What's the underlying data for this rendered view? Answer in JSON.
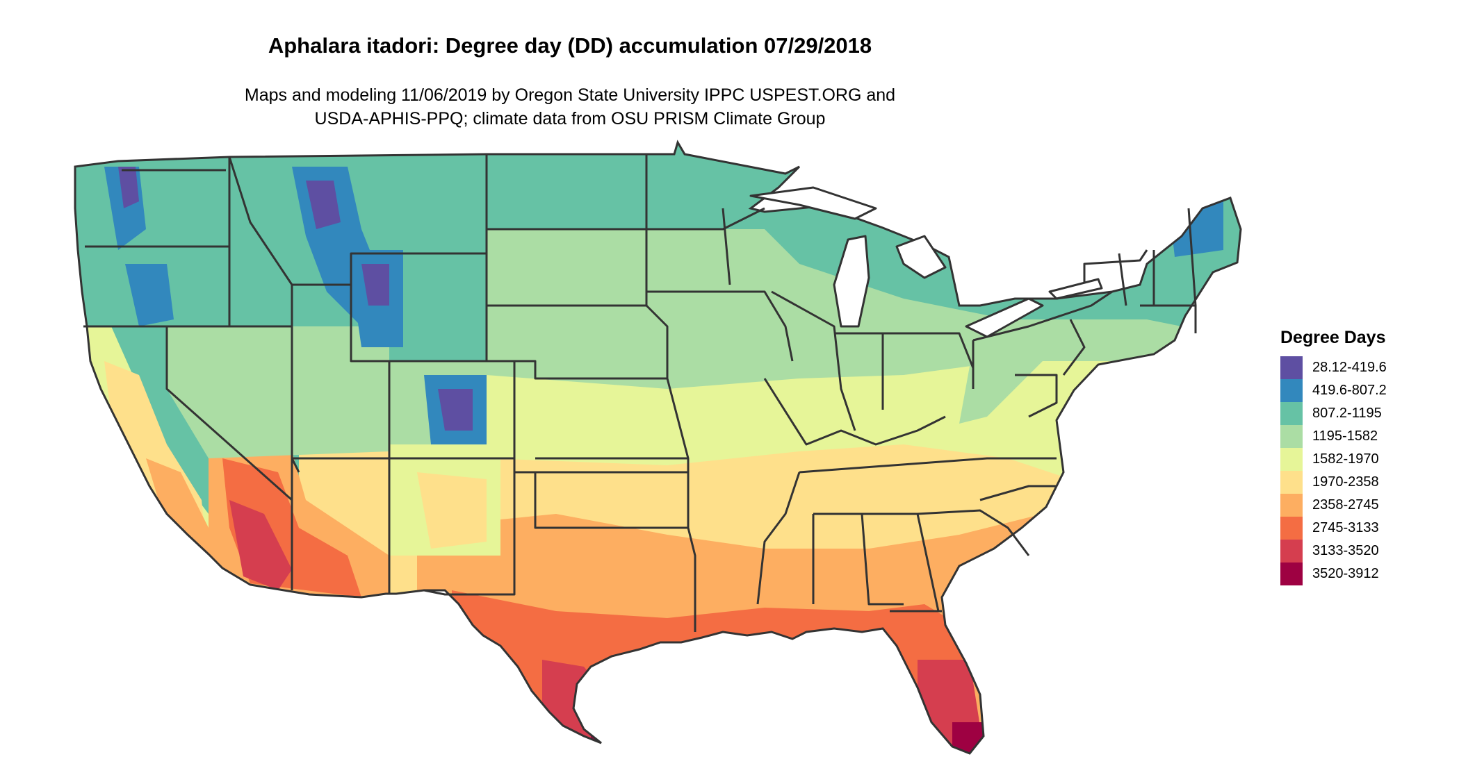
{
  "title": "Aphalara itadori: Degree day (DD) accumulation 07/29/2018",
  "subtitle_lines": [
    "Maps and modeling 11/06/2019 by Oregon State University IPPC USPEST.ORG and",
    "USDA-APHIS-PPQ; climate data from OSU PRISM Climate Group"
  ],
  "legend": {
    "title": "Degree Days",
    "items": [
      {
        "label": "28.12-419.6",
        "color": "#5e4fa2"
      },
      {
        "label": "419.6-807.2",
        "color": "#3288bd"
      },
      {
        "label": "807.2-1195",
        "color": "#66c2a5"
      },
      {
        "label": "1195-1582",
        "color": "#abdda4"
      },
      {
        "label": "1582-1970",
        "color": "#e6f598"
      },
      {
        "label": "1970-2358",
        "color": "#fee08b"
      },
      {
        "label": "2358-2745",
        "color": "#fdae61"
      },
      {
        "label": "2745-3133",
        "color": "#f46d43"
      },
      {
        "label": "3133-3520",
        "color": "#d53e4f"
      },
      {
        "label": "3520-3912",
        "color": "#9e0142"
      }
    ]
  }
}
